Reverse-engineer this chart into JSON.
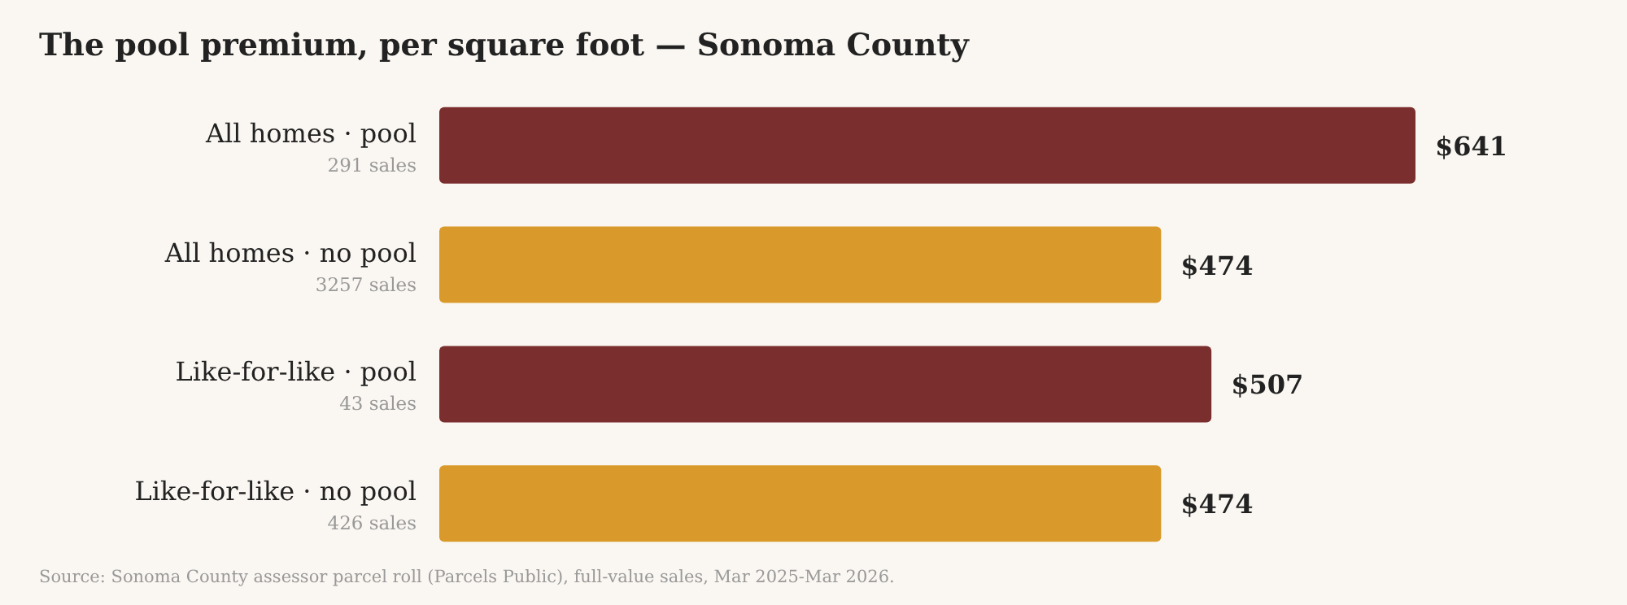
{
  "chart_data": {
    "type": "bar",
    "orientation": "horizontal",
    "title": "The pool premium, per square foot — Sonoma County",
    "categories": [
      "All homes · pool",
      "All homes · no pool",
      "Like-for-like · pool",
      "Like-for-like · no pool"
    ],
    "values": [
      641,
      474,
      507,
      474
    ],
    "colors": [
      "#7a2e2e",
      "#d99a2b",
      "#7a2e2e",
      "#d99a2b"
    ],
    "value_labels": [
      "$641",
      "$474",
      "$507",
      "$474"
    ],
    "annotations": [
      "291 sales",
      "3257 sales",
      "43 sales",
      "426 sales",
      "Source: Sonoma County assessor parcel roll (Parcels Public), full-value sales, Mar 2025-Mar 2026."
    ]
  }
}
